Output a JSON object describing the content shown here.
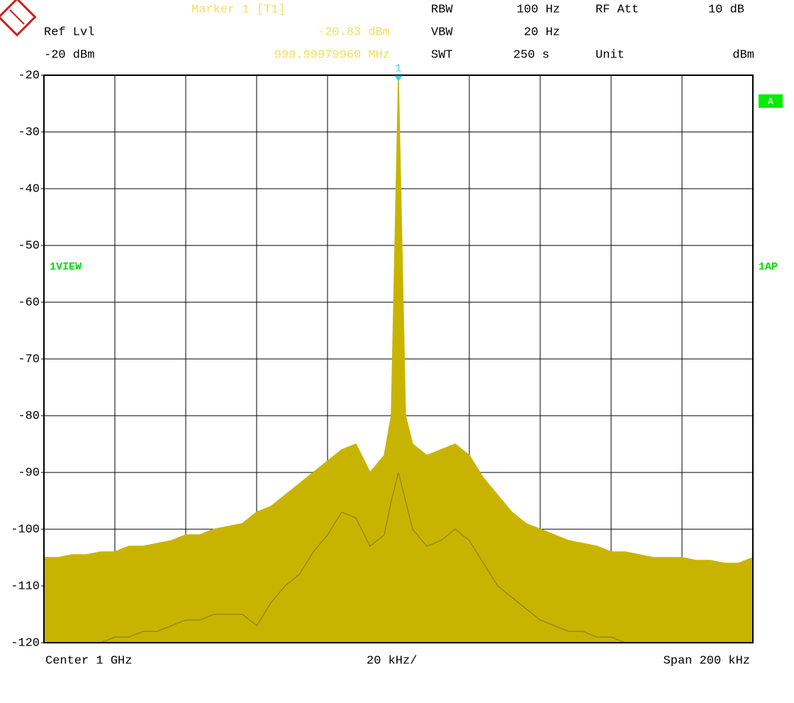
{
  "chart_data": {
    "type": "spectrum",
    "header": {
      "marker_title": "Marker 1 [T1]",
      "ref_lvl_label": "Ref Lvl",
      "ref_lvl_value": "-20 dBm",
      "marker_level": "-20.83 dBm",
      "marker_freq": "999.99979960 MHz",
      "rbw_label": "RBW",
      "rbw_value": "100 Hz",
      "vbw_label": "VBW",
      "vbw_value": "20 Hz",
      "swt_label": "SWT",
      "swt_value": "250 s",
      "rf_att_label": "RF Att",
      "rf_att_value": "10 dB",
      "unit_label": "Unit",
      "unit_value": "dBm",
      "trace_badge": "A",
      "left_annotation": "1VIEW",
      "right_annotation": "1AP",
      "center": "Center 1 GHz",
      "per_div": "20 kHz/",
      "span": "Span 200 kHz"
    },
    "marker": {
      "label": "1",
      "x": 0,
      "value": -20.83
    },
    "xlim": [
      -100,
      100
    ],
    "xticks": [
      -100,
      -80,
      -60,
      -40,
      -20,
      0,
      20,
      40,
      60,
      80,
      100
    ],
    "ylim": [
      -120,
      -20
    ],
    "yticks": [
      -20,
      -30,
      -40,
      -50,
      -60,
      -70,
      -80,
      -90,
      -100,
      -110,
      -120
    ],
    "grid": true,
    "x": [
      -100,
      -96,
      -92,
      -88,
      -84,
      -80,
      -76,
      -72,
      -68,
      -64,
      -60,
      -56,
      -52,
      -48,
      -44,
      -40,
      -36,
      -32,
      -28,
      -24,
      -20,
      -16,
      -12,
      -8,
      -4,
      -2,
      0,
      2,
      4,
      8,
      12,
      16,
      20,
      24,
      28,
      32,
      36,
      40,
      44,
      48,
      52,
      56,
      60,
      64,
      68,
      72,
      76,
      80,
      84,
      88,
      92,
      96,
      100
    ],
    "series": [
      {
        "name": "max",
        "color": "#c8b400",
        "values": [
          -105,
          -105,
          -104.5,
          -104.5,
          -104,
          -104,
          -103,
          -103,
          -102.5,
          -102,
          -101,
          -101,
          -100,
          -99.5,
          -99,
          -97,
          -96,
          -94,
          -92,
          -90,
          -88,
          -86,
          -85,
          -90,
          -87,
          -80,
          -20.83,
          -80,
          -85,
          -87,
          -86,
          -85,
          -87,
          -91,
          -94,
          -97,
          -99,
          -100,
          -101,
          -102,
          -102.5,
          -103,
          -104,
          -104,
          -104.5,
          -105,
          -105,
          -105,
          -105.5,
          -105.5,
          -106,
          -106,
          -105
        ]
      },
      {
        "name": "min",
        "color": "#9a8a00",
        "values": [
          -120,
          -120,
          -120,
          -120,
          -120,
          -119,
          -119,
          -118,
          -118,
          -117,
          -116,
          -116,
          -115,
          -115,
          -115,
          -117,
          -113,
          -110,
          -108,
          -104,
          -101,
          -97,
          -98,
          -103,
          -101,
          -95,
          -90,
          -95,
          -100,
          -103,
          -102,
          -100,
          -102,
          -106,
          -110,
          -112,
          -114,
          -116,
          -117,
          -118,
          -118,
          -119,
          -119,
          -120,
          -120,
          -120,
          -120,
          -120,
          -120,
          -120,
          -120,
          -120,
          -120
        ]
      }
    ]
  }
}
